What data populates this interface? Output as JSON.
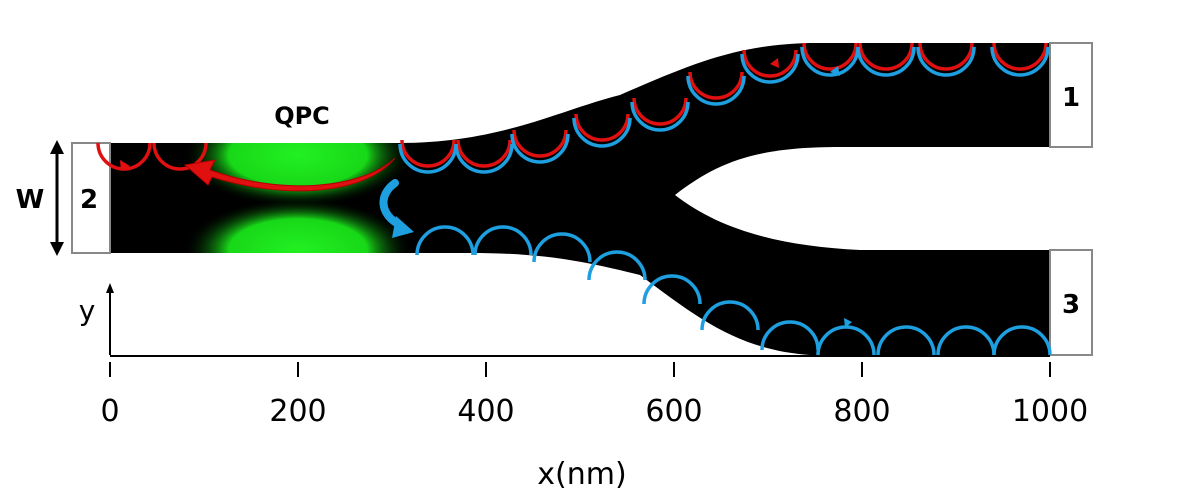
{
  "labels": {
    "qpc": "QPC",
    "width": "W",
    "y_axis": "y",
    "x_axis": "x(nm)"
  },
  "contacts": [
    {
      "id": "1",
      "label": "1"
    },
    {
      "id": "2",
      "label": "2"
    },
    {
      "id": "3",
      "label": "3"
    }
  ],
  "x_ticks": [
    "0",
    "200",
    "400",
    "600",
    "800",
    "1000"
  ],
  "colors": {
    "channel": "#000000",
    "qpc_gate": "#19e619",
    "reflected_edge_state": "#e01010",
    "transmitted_edge_state": "#1e9fe0",
    "contact_border": "#888888"
  }
}
